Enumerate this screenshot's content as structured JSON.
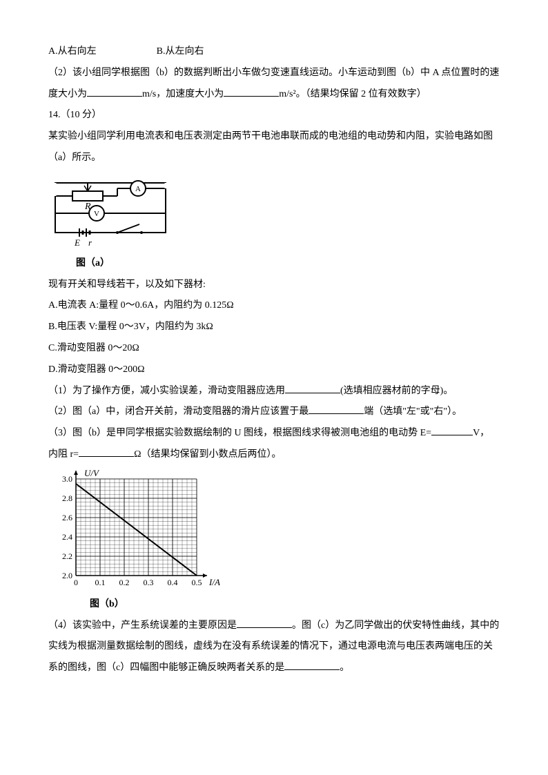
{
  "line1_optA": "A.从右向左",
  "line1_optB": "B.从左向右",
  "line2": "（2）该小组同学根据图（b）的数据判断出小车做匀变速直线运动。小车运动到图（b）中 A 点位置时的速",
  "line3_a": "度大小为",
  "line3_b": "m/s，加速度大小为",
  "line3_c": "m/s²。（结果均保留 2 位有效数字）",
  "q14": "14.（10 分）",
  "line5": "某实验小组同学利用电流表和电压表测定由两节干电池串联而成的电池组的电动势和内阻，实验电路如图",
  "line6": "（a）所示。",
  "circuit_label": "图（a）",
  "line7": "现有开关和导线若干，以及如下器材:",
  "optA": "A.电流表 A:量程 0～0.6A，内阻约为 0.125Ω",
  "optB": "B.电压表 V:量程 0～3V，内阻约为 3kΩ",
  "optC": "C.滑动变阻器 0～20Ω",
  "optD": "D.滑动变阻器 0～200Ω",
  "q1_a": "（1）为了操作方便，减小实验误差，滑动变阻器应选用",
  "q1_b": "(选填相应器材前的字母)。",
  "q2_a": "（2）图（a）中，闭合开关前，滑动变阻器的滑片应该置于最",
  "q2_b": "端（选填\"左\"或\"右\"）。",
  "q3_a": "（3）图（b）是甲同学根据实验数据绘制的 U 图线，根据图线求得被测电池组的电动势 E=",
  "q3_b": "V，",
  "q3_c": "内阻 r=",
  "q3_d": "Ω（结果均保留到小数点后两位）。",
  "graph": {
    "ylabel": "U/V",
    "xlabel": "I/A",
    "yticks": [
      "2.0",
      "2.2",
      "2.4",
      "2.6",
      "2.8",
      "3.0"
    ],
    "xticks": [
      "0",
      "0.1",
      "0.2",
      "0.3",
      "0.4",
      "0.5"
    ],
    "line_x1": 0,
    "line_y1": 2.95,
    "line_x2": 0.5,
    "line_y2": 2.0,
    "bg": "#ffffff",
    "grid": "#000000"
  },
  "graph_label": "图（b）",
  "q4_a": "（4）该实验中，产生系统误差的主要原因是",
  "q4_b": "。图（c）为乙同学做出的伏安特性曲线，其中的",
  "q4_c": "实线为根据测量数据绘制的图线，虚线为在没有系统误差的情况下，通过电源电流与电压表两端电压的关",
  "q4_d": "系的图线，图（c）四幅图中能够正确反映两者关系的是",
  "q4_e": "。"
}
